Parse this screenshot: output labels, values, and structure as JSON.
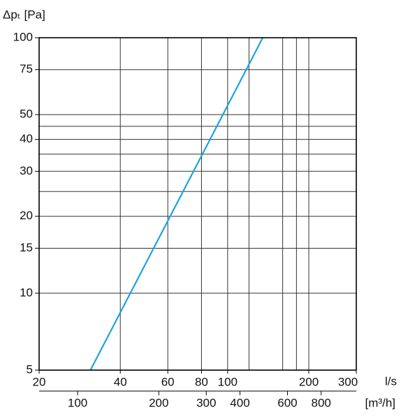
{
  "chart_data": {
    "type": "line",
    "y_label": "Δpₜ [Pa]",
    "x_label": "l/s",
    "x2_label": "[m³/h]",
    "log_x": true,
    "log_y": true,
    "grid": true,
    "xlim": [
      20,
      300
    ],
    "xticks": [
      20,
      40,
      60,
      80,
      100,
      200,
      300
    ],
    "xgrid": [
      40,
      60,
      80,
      100,
      120,
      160,
      180,
      200
    ],
    "x2lim": [
      72,
      1080
    ],
    "x2ticks": [
      100,
      200,
      300,
      400,
      600,
      800
    ],
    "ylim": [
      5,
      100
    ],
    "yticks": [
      5,
      10,
      15,
      20,
      30,
      40,
      50,
      75,
      100
    ],
    "ygrid": [
      10,
      15,
      20,
      25,
      30,
      35,
      40,
      45,
      50,
      75
    ],
    "series": [
      {
        "name": "Δpₜ",
        "color": "#1ba3dc",
        "x": [
          31,
          135
        ],
        "values": [
          5,
          100
        ]
      }
    ]
  }
}
